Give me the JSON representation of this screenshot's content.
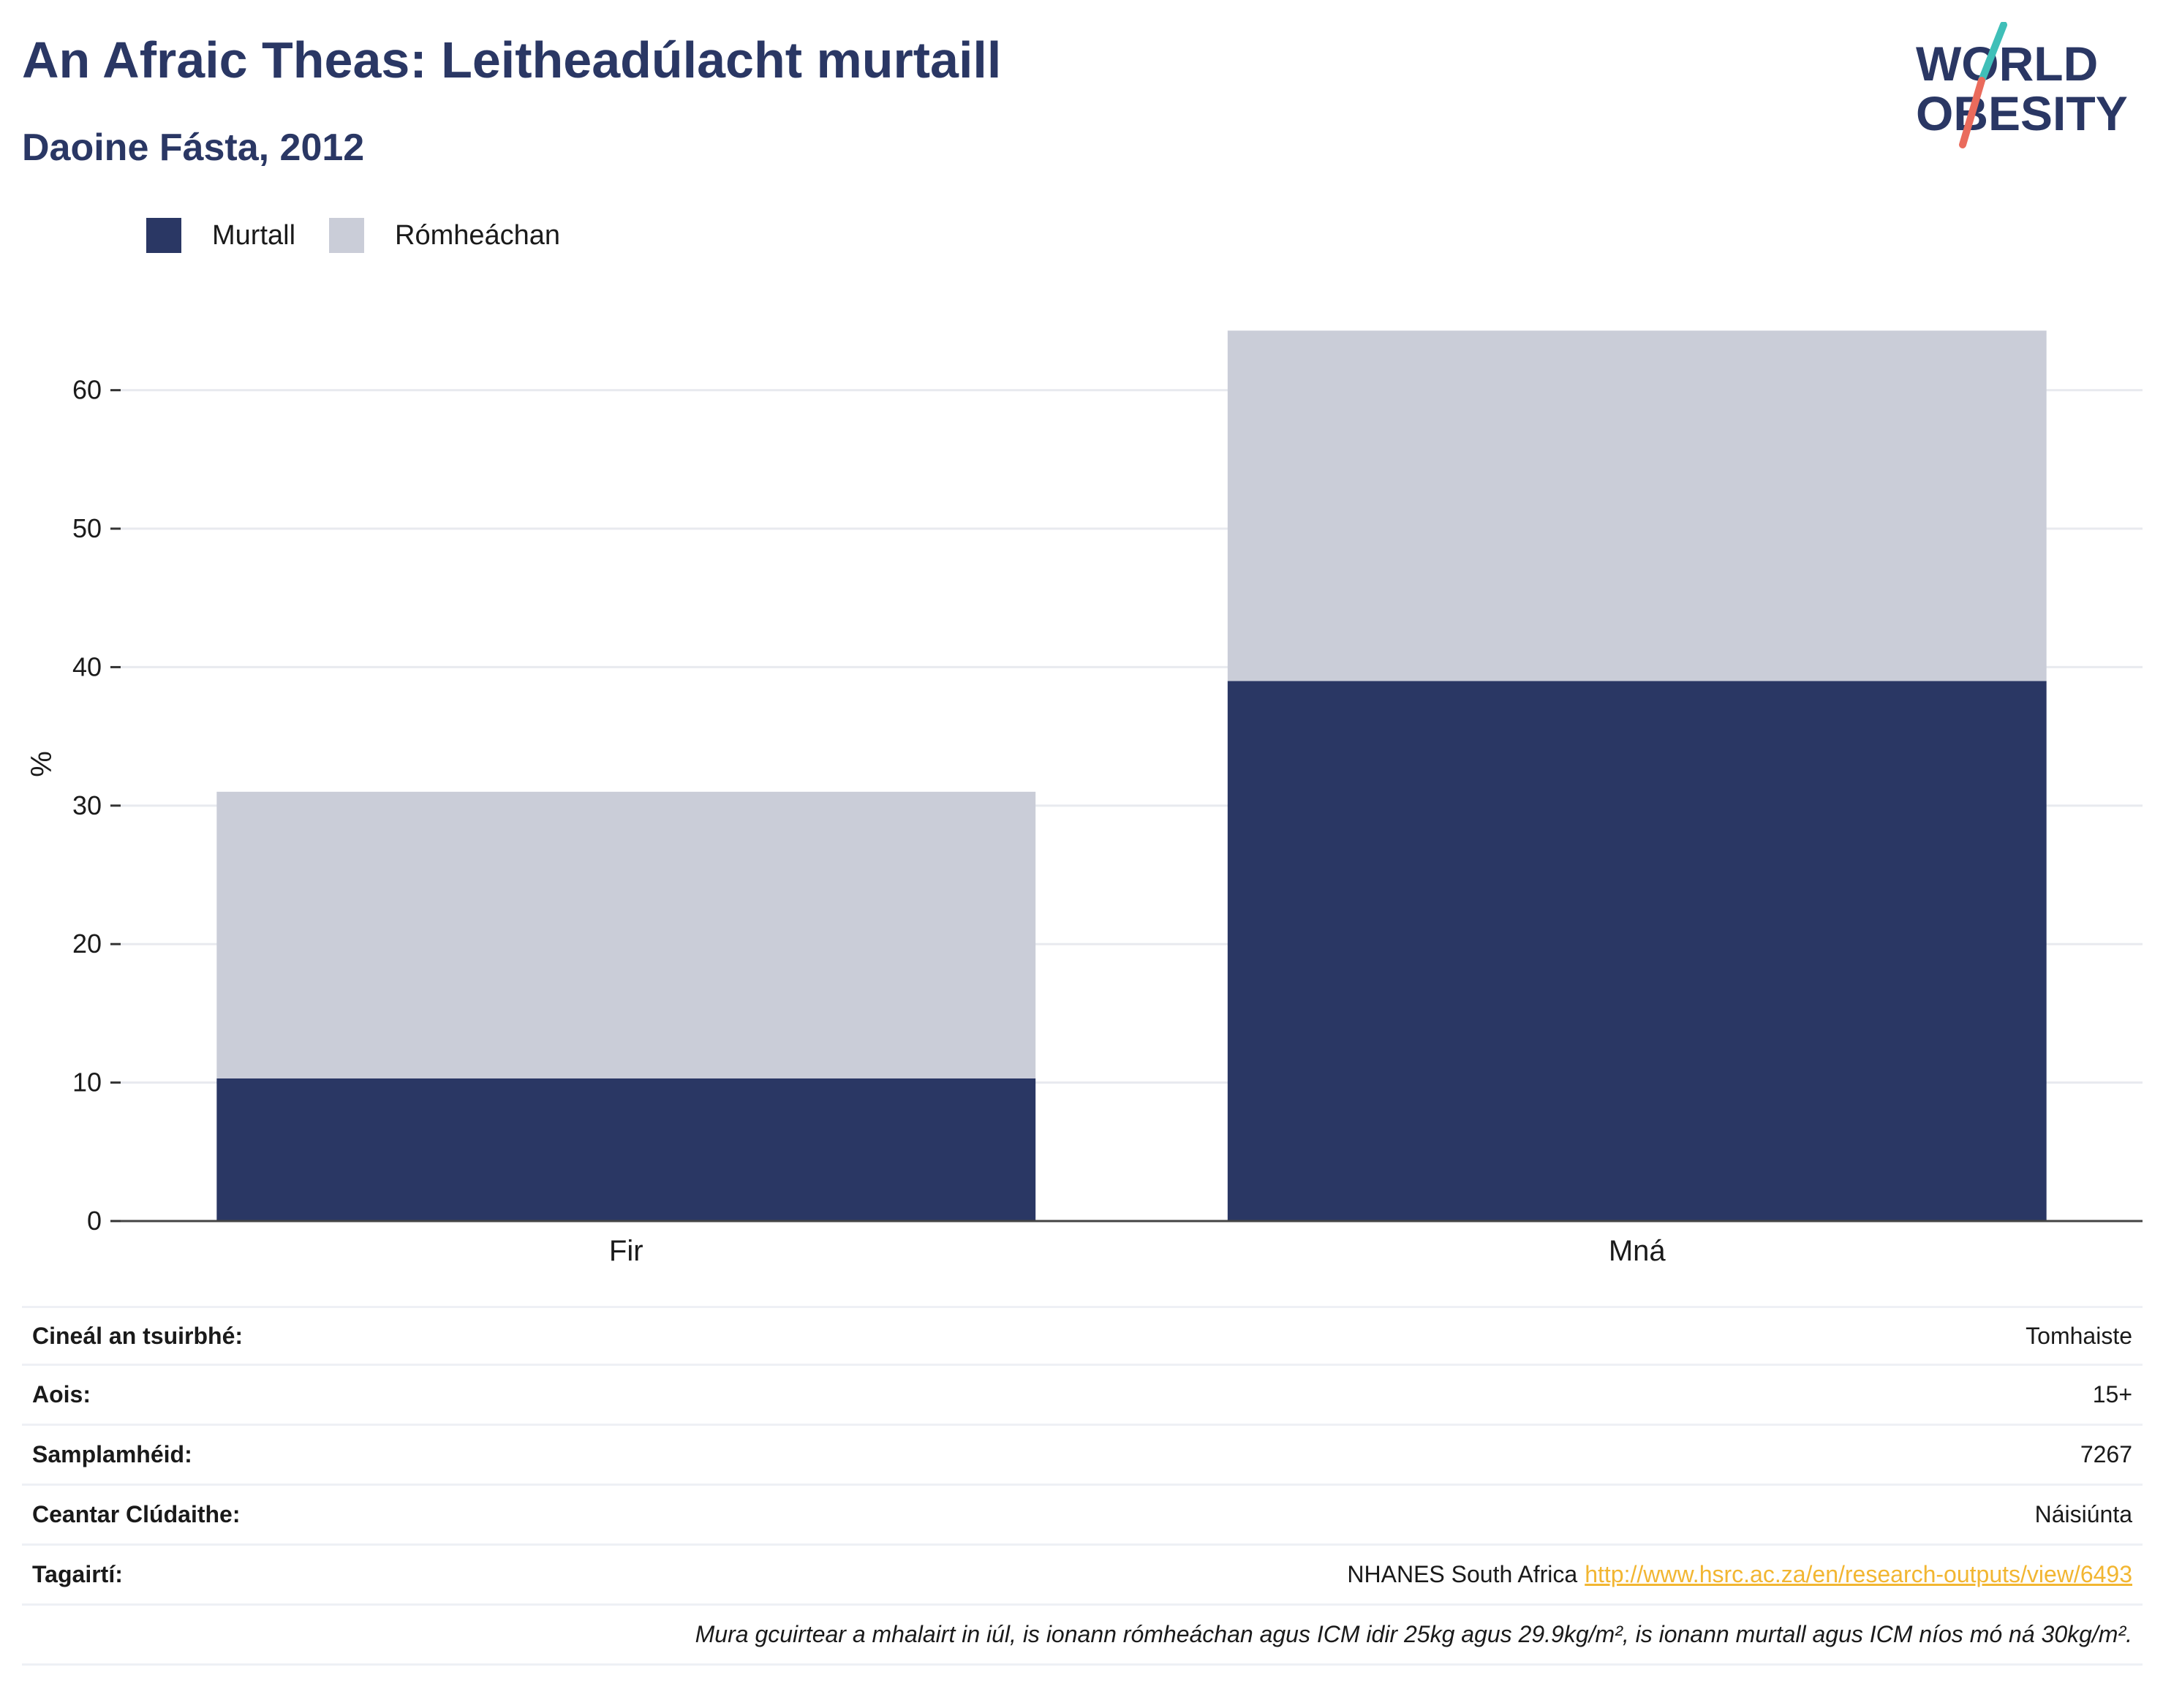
{
  "title": "An Afraic Theas: Leitheadúlacht murtaill",
  "subtitle": "Daoine Fásta, 2012",
  "logo": {
    "line1": "WORLD",
    "line2": "OBESITY",
    "accent_teal": "#3fbfb8",
    "accent_coral": "#ea6b5c",
    "color": "#2a3764"
  },
  "legend": [
    {
      "label": "Murtall",
      "color": "#2a3764"
    },
    {
      "label": "Rómheáchan",
      "color": "#cacdd8"
    }
  ],
  "chart_data": {
    "type": "bar",
    "stacked": true,
    "categories": [
      "Fir",
      "Mná"
    ],
    "series": [
      {
        "name": "Murtall",
        "values": [
          10.3,
          39.0
        ],
        "color": "#2a3764"
      },
      {
        "name": "Rómheáchan",
        "values": [
          20.7,
          25.3
        ],
        "color": "#cacdd8"
      }
    ],
    "ylabel": "%",
    "ylim": [
      0,
      66
    ],
    "yticks": [
      0,
      10,
      20,
      30,
      40,
      50,
      60
    ],
    "grid": true
  },
  "info": {
    "survey_type_label": "Cineál an tsuirbhé:",
    "survey_type_value": "Tomhaiste",
    "age_label": "Aois:",
    "age_value": "15+",
    "sample_label": "Samplamhéid:",
    "sample_value": "7267",
    "coverage_label": "Ceantar Clúdaithe:",
    "coverage_value": "Náisiúnta",
    "refs_label": "Tagairtí:",
    "refs_text": "NHANES South Africa",
    "refs_link": "http://www.hsrc.ac.za/en/research-outputs/view/6493",
    "note": "Mura gcuirtear a mhalairt in iúl, is ionann rómheáchan agus ICM idir 25kg agus 29.9kg/m², is ionann murtall agus ICM níos mó ná 30kg/m²."
  }
}
